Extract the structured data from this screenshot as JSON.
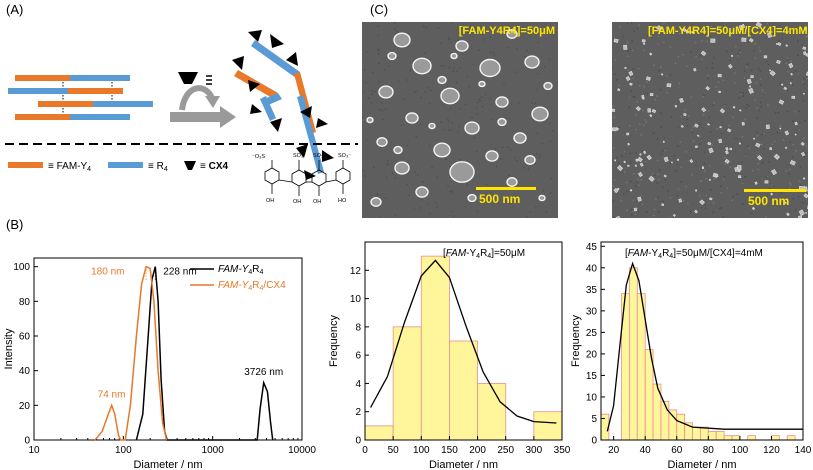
{
  "panels": {
    "A": "(A)",
    "B": "(B)",
    "C": "(C)"
  },
  "schematic": {
    "legend": [
      {
        "symbol": "orange-bar",
        "text": "≡ FAM-Y",
        "sub": "4"
      },
      {
        "symbol": "blue-bar",
        "text": "≡ R",
        "sub": "4"
      },
      {
        "symbol": "black-trapezoid",
        "text": "≡ CX4"
      }
    ],
    "colors": {
      "orange": "#e8782a",
      "blue": "#5b9bd5",
      "arrow": "#9a9a9a"
    },
    "cx4_labels": {
      "so3_left": "⁻O₃S",
      "so3_mid1": "SO₃⁻",
      "so3_mid2": "SO₃⁻",
      "so3_right": "SO₃⁻",
      "oh1": "OH",
      "oh2": "OH",
      "oh3": "OH",
      "ho": "HO"
    }
  },
  "sem": {
    "left_caption": "[FAM-Y4R4]=50μM",
    "right_caption": "[FAM-Y4R4]=50μM/[CX4]=4mM",
    "scale_left": "500 nm",
    "scale_right": "500 nm"
  },
  "chart_data": [
    {
      "type": "line",
      "panel": "B",
      "xscale": "log",
      "xlim": [
        10,
        10000
      ],
      "ylim": [
        0,
        105
      ],
      "xlabel": "Diameter / nm",
      "ylabel": "Intensity",
      "xticks": [
        "10",
        "100",
        "1000",
        "10000"
      ],
      "yticks": [
        0,
        20,
        40,
        60,
        80,
        100
      ],
      "legend_position": "top-right",
      "series": [
        {
          "name": "FAM-Y4R4",
          "color": "#000000",
          "points": [
            [
              140,
              0
            ],
            [
              165,
              15
            ],
            [
              190,
              60
            ],
            [
              210,
              93
            ],
            [
              228,
              100
            ],
            [
              245,
              80
            ],
            [
              265,
              35
            ],
            [
              290,
              5
            ],
            [
              310,
              0
            ],
            [
              3150,
              0
            ],
            [
              3400,
              18
            ],
            [
              3726,
              33
            ],
            [
              4100,
              28
            ],
            [
              4450,
              10
            ],
            [
              4700,
              0
            ]
          ]
        },
        {
          "name": "FAM-Y4R4/CX4",
          "color": "#e8782a",
          "points": [
            [
              48,
              0
            ],
            [
              58,
              5
            ],
            [
              68,
              15
            ],
            [
              74,
              20
            ],
            [
              80,
              15
            ],
            [
              88,
              3
            ],
            [
              93,
              0
            ],
            [
              105,
              0
            ],
            [
              120,
              20
            ],
            [
              140,
              60
            ],
            [
              160,
              90
            ],
            [
              180,
              100
            ],
            [
              200,
              99
            ],
            [
              220,
              80
            ],
            [
              245,
              40
            ],
            [
              275,
              10
            ],
            [
              305,
              0
            ]
          ]
        }
      ],
      "annotations": [
        {
          "text": "228 nm",
          "color": "#000000"
        },
        {
          "text": "180 nm",
          "color": "#e8782a"
        },
        {
          "text": "74 nm",
          "color": "#e8782a"
        },
        {
          "text": "3726 nm",
          "color": "#000000"
        }
      ]
    },
    {
      "type": "bar",
      "panel": "C-left",
      "title": "[FAM-Y4R4]=50μM",
      "xlabel": "Diameter / nm",
      "ylabel": "Frequency",
      "xlim": [
        0,
        350
      ],
      "ylim": [
        0,
        14
      ],
      "xticks": [
        0,
        50,
        100,
        150,
        200,
        250,
        300,
        350
      ],
      "yticks": [
        0,
        2,
        4,
        6,
        8,
        10,
        12
      ],
      "bin_width": 50,
      "bins": [
        [
          0,
          1
        ],
        [
          50,
          8
        ],
        [
          100,
          13
        ],
        [
          150,
          7
        ],
        [
          200,
          4
        ],
        [
          250,
          0
        ],
        [
          300,
          2
        ]
      ],
      "fit": [
        [
          10,
          2.3
        ],
        [
          40,
          4.5
        ],
        [
          70,
          8.3
        ],
        [
          100,
          11.6
        ],
        [
          125,
          12.7
        ],
        [
          150,
          11.5
        ],
        [
          180,
          8.0
        ],
        [
          210,
          4.8
        ],
        [
          240,
          2.7
        ],
        [
          270,
          1.7
        ],
        [
          300,
          1.3
        ],
        [
          340,
          1.2
        ]
      ]
    },
    {
      "type": "bar",
      "panel": "C-right",
      "title": "[FAM-Y4R4]=50μM/[CX4]=4mM",
      "xlabel": "Diameter / nm",
      "ylabel": "Frequency",
      "xlim": [
        12,
        140
      ],
      "ylim": [
        0,
        46
      ],
      "xticks": [
        20,
        40,
        60,
        80,
        100,
        120,
        140
      ],
      "yticks": [
        0,
        5,
        10,
        15,
        20,
        25,
        30,
        35,
        40,
        45
      ],
      "bin_width": 5,
      "bins": [
        [
          12,
          6
        ],
        [
          17,
          0
        ],
        [
          22,
          0
        ],
        [
          25,
          34
        ],
        [
          30,
          40
        ],
        [
          35,
          34
        ],
        [
          40,
          21
        ],
        [
          45,
          13
        ],
        [
          50,
          9
        ],
        [
          55,
          7
        ],
        [
          60,
          6
        ],
        [
          65,
          4
        ],
        [
          70,
          3
        ],
        [
          75,
          3
        ],
        [
          80,
          2
        ],
        [
          85,
          2
        ],
        [
          90,
          1
        ],
        [
          95,
          1
        ],
        [
          105,
          1
        ],
        [
          120,
          1
        ],
        [
          130,
          1
        ]
      ],
      "fit": [
        [
          16,
          2
        ],
        [
          20,
          8
        ],
        [
          24,
          22
        ],
        [
          28,
          36
        ],
        [
          32,
          41
        ],
        [
          36,
          37
        ],
        [
          40,
          28
        ],
        [
          44,
          19
        ],
        [
          48,
          12
        ],
        [
          54,
          7
        ],
        [
          60,
          4.5
        ],
        [
          70,
          3
        ],
        [
          90,
          2.5
        ],
        [
          140,
          2.5
        ]
      ]
    }
  ]
}
